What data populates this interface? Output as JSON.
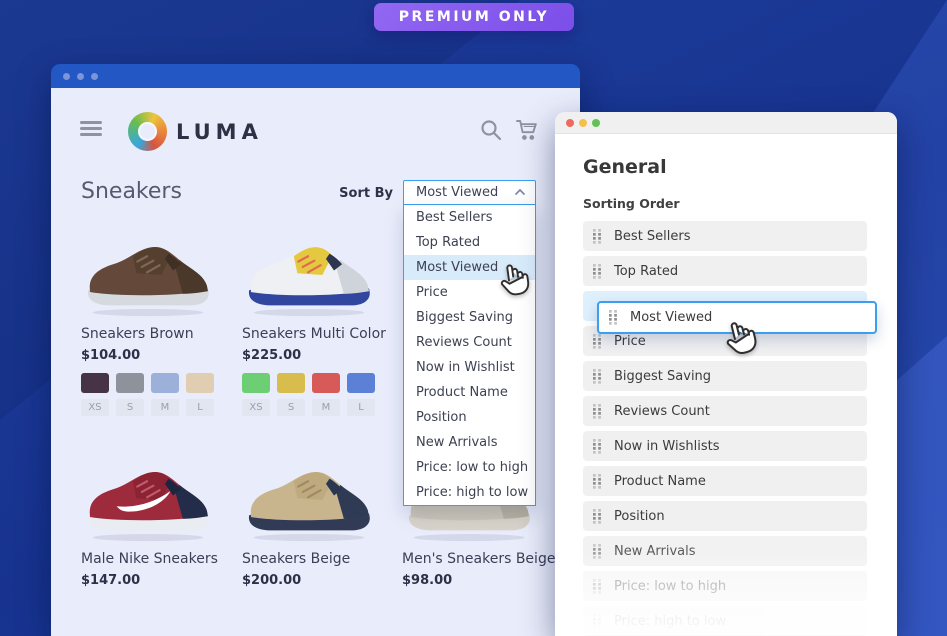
{
  "badge": {
    "label": "PREMIUM ONLY"
  },
  "colors": {
    "bg_blue": "#17338f",
    "accent_blue": "#38a0ef",
    "titlebar_blue": "#2257c4",
    "badge_purple_1": "#9268f2",
    "badge_purple_2": "#7b4ee9",
    "content_bg": "#e9edfb",
    "highlight_row": "#d8ebfb",
    "placeholder_blue": "#dff0fd",
    "panel_row_bg": "#f0f0f1",
    "traffic_red": "#ee6a5f",
    "traffic_yellow": "#f5bf4e",
    "traffic_green": "#5fc454"
  },
  "icons": {
    "menu": "hamburger-icon",
    "search": "search-icon",
    "cart": "cart-icon",
    "chevron": "chevron-up-icon",
    "drag": "drag-handle-icon",
    "cursor": "hand-cursor-icon"
  },
  "browser": {
    "logo_text": "LUMA",
    "page_title": "Sneakers",
    "sort_by_label": "Sort By",
    "sort_selected": "Most Viewed",
    "sort_highlighted": "Most Viewed",
    "sort_options": [
      "Best Sellers",
      "Top Rated",
      "Most Viewed",
      "Price",
      "Biggest Saving",
      "Reviews Count",
      "Now in Wishlist",
      "Product Name",
      "Position",
      "New Arrivals",
      "Price: low to high",
      "Price: high to low"
    ],
    "products": [
      {
        "name": "Sneakers Brown",
        "price": "$104.00",
        "swatches": [
          "#463446",
          "#8e939b",
          "#9cb0d9",
          "#e0cdb2"
        ],
        "sizes": [
          "XS",
          "S",
          "M",
          "L"
        ],
        "art": {
          "body": "#64493a",
          "panel": "#55402f",
          "heel": "#4a382b",
          "collar": "#3f2f24",
          "lace": "#826753",
          "sole": "#d6d9de",
          "swoosh": "none"
        }
      },
      {
        "name": "Sneakers Multi Color",
        "price": "$225.00",
        "swatches": [
          "#6ece73",
          "#d9bc4e",
          "#d85a58",
          "#5b80d6"
        ],
        "sizes": [
          "XS",
          "S",
          "M",
          "L"
        ],
        "art": {
          "body": "#eef0f3",
          "panel": "#e4c83f",
          "heel": "#cfd3da",
          "collar": "#2e3550",
          "lace": "#e06a4f",
          "sole": "#31479f",
          "swoosh": "none"
        }
      },
      {
        "name": "Male Nike Sneakers",
        "price": "$147.00",
        "art": {
          "body": "#9e2b3c",
          "panel": "#8c2333",
          "heel": "#232c49",
          "collar": "#1d2540",
          "lace": "#c05a6c",
          "sole": "#e9ecf0",
          "swoosh": "#ffffff"
        }
      },
      {
        "name": "Sneakers Beige",
        "price": "$200.00",
        "art": {
          "body": "#c9b58d",
          "panel": "#bfa97f",
          "heel": "#2f3a54",
          "collar": "#2b3650",
          "lace": "#a08a63",
          "sole": "#313b55",
          "swoosh": "none"
        }
      },
      {
        "name": "Men's Sneakers Beige",
        "price": "$98.00",
        "art": {
          "body": "#cdc6b8",
          "panel": "#c4bcab",
          "heel": "#b9b2a2",
          "collar": "#aaa396",
          "lace": "#b5ad9c",
          "sole": "#d9d4ca",
          "swoosh": "none"
        }
      }
    ]
  },
  "panel": {
    "title": "General",
    "section_label": "Sorting Order",
    "items": [
      "Best Sellers",
      "Top Rated",
      "Price",
      "Biggest Saving",
      "Reviews Count",
      "Now in Wishlists",
      "Product Name",
      "Position",
      "New Arrivals",
      "Price: low to high",
      "Price: high to low"
    ],
    "placeholder_index": 2,
    "dragged_item": "Most Viewed",
    "fades": {
      "8": "fade-1",
      "9": "fade-2",
      "10": "fade-3"
    }
  }
}
